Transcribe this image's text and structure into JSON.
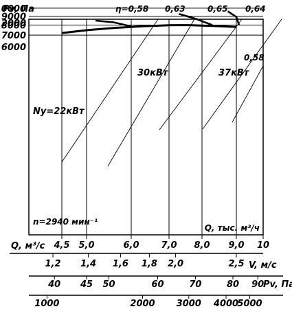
{
  "chart_data": {
    "type": "line",
    "y_axis": {
      "label": "Pv, Па",
      "ticks": [
        6000,
        7000,
        8000,
        9000,
        10000,
        12000
      ]
    },
    "x_axis": {
      "label": "Q, тыс. м³/ч",
      "ticks": [
        "4,5",
        "5,0",
        "6,0",
        "7,0",
        "8,0",
        "9,0",
        "10"
      ],
      "tick_values": [
        4.5,
        5.0,
        6.0,
        7.0,
        8.0,
        9.0,
        10
      ]
    },
    "secondary_axes": [
      {
        "label": "Q, м³/с",
        "ticks": [
          {
            "label": "1,2",
            "q": 4.32
          },
          {
            "label": "1,4",
            "q": 5.04
          },
          {
            "label": "1,6",
            "q": 5.76
          },
          {
            "label": "1,8",
            "q": 6.48
          },
          {
            "label": "2,0",
            "q": 7.2
          },
          {
            "label": "2,5",
            "q": 9.0
          }
        ]
      },
      {
        "label": "V, м/с",
        "ticks": []
      },
      {
        "label": "Pv, Па",
        "ticks": [
          {
            "label": "40",
            "q": 4.35
          },
          {
            "label": "45",
            "q": 5.0
          },
          {
            "label": "50",
            "q": 5.5
          },
          {
            "label": "60",
            "q": 6.7
          },
          {
            "label": "70",
            "q": 7.8
          },
          {
            "label": "80",
            "q": 8.9
          },
          {
            "label": "90",
            "q": 9.8
          }
        ]
      },
      {
        "label": "",
        "ticks": [
          {
            "label": "1000",
            "q": 4.2
          },
          {
            "label": "2000",
            "q": 6.3
          },
          {
            "label": "3000",
            "q": 7.6
          },
          {
            "label": "4000",
            "q": 8.7
          },
          {
            "label": "5000",
            "q": 9.5
          }
        ]
      }
    ],
    "series": [
      {
        "name": "",
        "x": [
          4.5,
          5.0,
          5.6,
          6.3,
          7.0,
          7.6,
          8.3,
          9.0
        ],
        "y": [
          7200,
          7470,
          7700,
          7870,
          7980,
          7990,
          7910,
          7800
        ]
      }
    ],
    "power_curves": [
      {
        "label": "Ny=22кВт",
        "x": [
          5.2,
          5.6,
          6.0
        ],
        "y": [
          8480,
          8300,
          7850
        ]
      },
      {
        "label": "30кВт",
        "x": [
          7.3,
          7.8,
          8.3
        ],
        "y": [
          9270,
          8700,
          8000
        ]
      },
      {
        "label": "37кВт",
        "x": [
          8.75,
          9.0,
          9.1
        ],
        "y": [
          9600,
          8900,
          8000
        ]
      }
    ],
    "efficiency_labels": [
      "η=0,58",
      "0,63",
      "0,65",
      "0,64",
      "0,58"
    ],
    "annotation": "n=2940 мин⁻¹"
  }
}
